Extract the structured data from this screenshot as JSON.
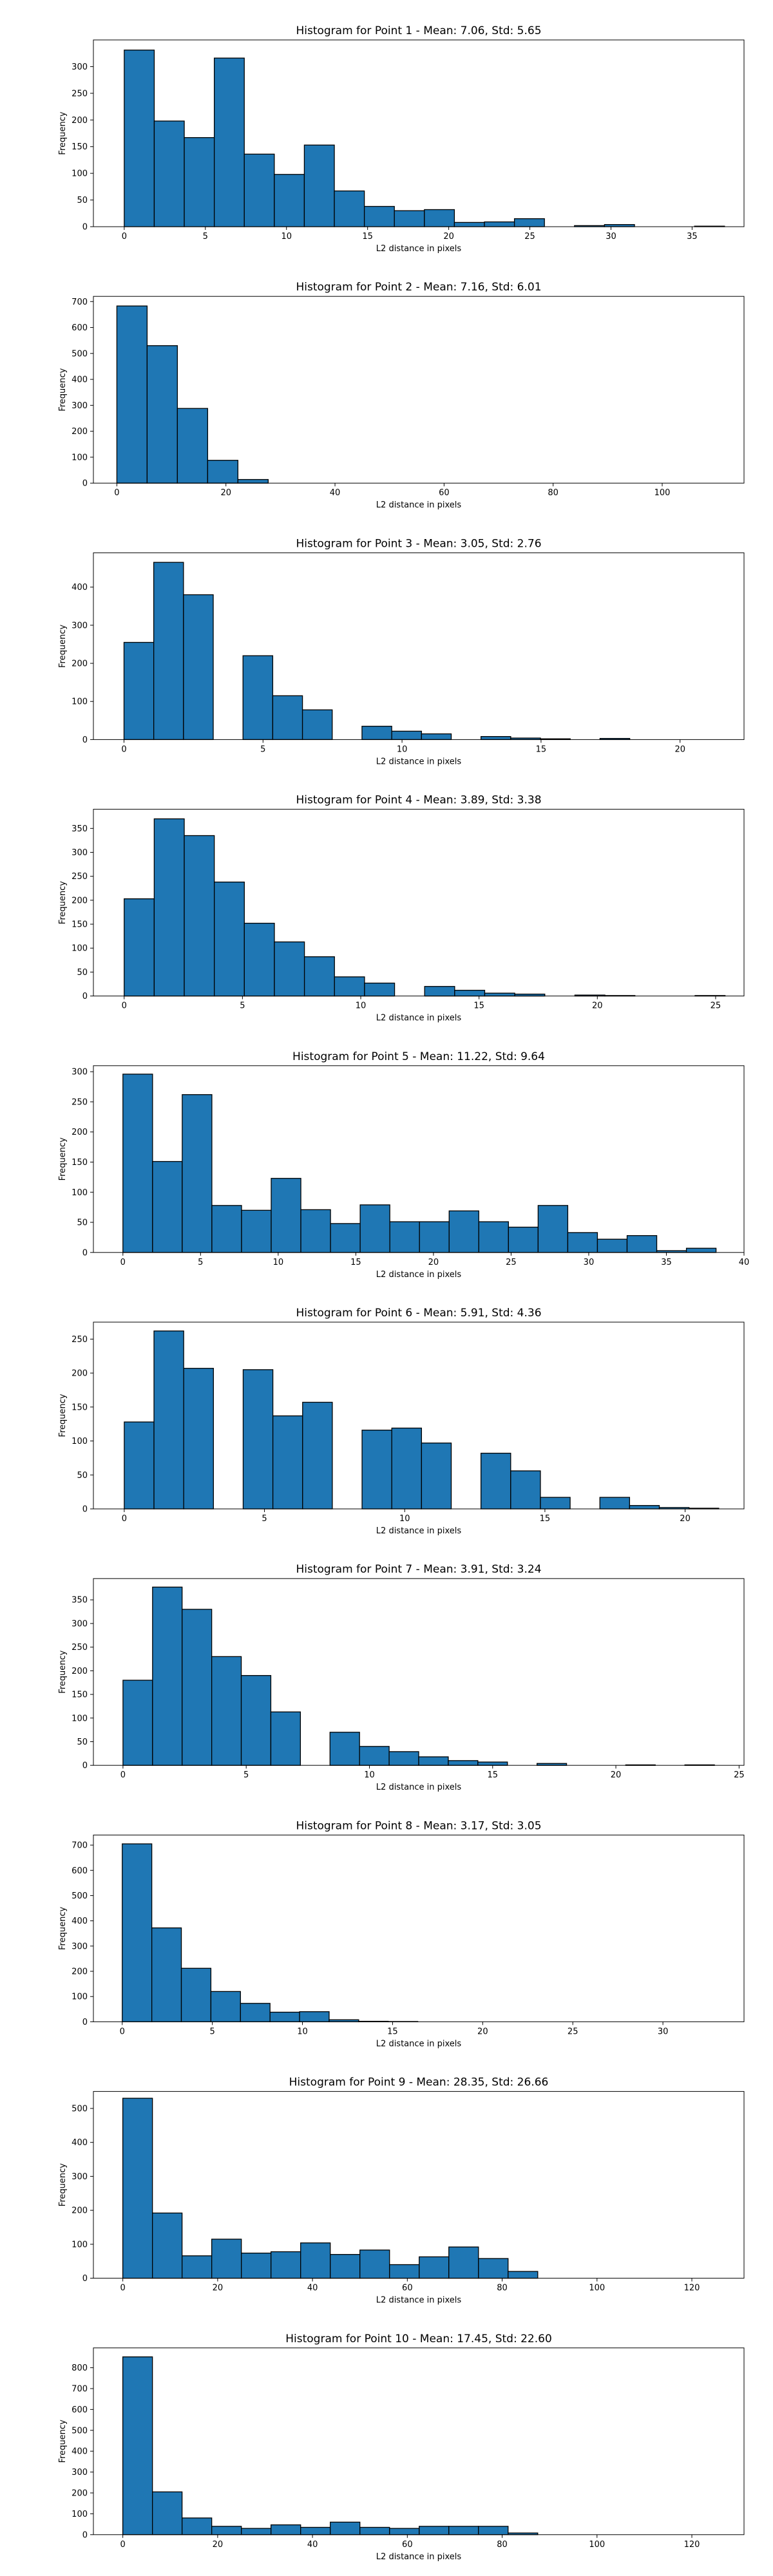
{
  "chart_data": [
    {
      "type": "bar",
      "title": "Histogram for Point 1 - Mean: 7.06, Std: 5.65",
      "xlabel": "L2 distance in pixels",
      "ylabel": "Frequency",
      "xlim": [
        -1.9,
        38.2
      ],
      "ylim": [
        0,
        350
      ],
      "xticks": [
        0,
        5,
        10,
        15,
        20,
        25,
        30,
        35
      ],
      "yticks": [
        0,
        50,
        100,
        150,
        200,
        250,
        300
      ],
      "bin_width": 1.85,
      "bin_start": 0,
      "bar_color": "#1f77b4",
      "edge_color": "#000000",
      "values": [
        331,
        198,
        167,
        316,
        136,
        98,
        153,
        67,
        38,
        30,
        32,
        8,
        9,
        15,
        0,
        2,
        4,
        0,
        0,
        1
      ]
    },
    {
      "type": "bar",
      "title": "Histogram for Point 2 - Mean: 7.16, Std: 6.01",
      "xlabel": "L2 distance in pixels",
      "ylabel": "Frequency",
      "xlim": [
        -4.3,
        115
      ],
      "ylim": [
        0,
        720
      ],
      "xticks": [
        0,
        20,
        40,
        60,
        80,
        100
      ],
      "yticks": [
        0,
        100,
        200,
        300,
        400,
        500,
        600,
        700
      ],
      "bin_width": 5.55,
      "bin_start": 0,
      "bar_color": "#1f77b4",
      "edge_color": "#000000",
      "values": [
        683,
        530,
        288,
        88,
        14,
        0,
        0,
        0,
        0,
        0,
        0,
        0,
        0,
        0,
        0,
        0,
        0,
        0,
        0,
        0
      ]
    },
    {
      "type": "bar",
      "title": "Histogram for Point 3 - Mean: 3.05, Std: 2.76",
      "xlabel": "L2 distance in pixels",
      "ylabel": "Frequency",
      "xlim": [
        -1.1,
        22.3
      ],
      "ylim": [
        0,
        490
      ],
      "xticks": [
        0,
        5,
        10,
        15,
        20
      ],
      "yticks": [
        0,
        100,
        200,
        300,
        400
      ],
      "bin_width": 1.07,
      "bin_start": 0,
      "bar_color": "#1f77b4",
      "edge_color": "#000000",
      "values": [
        255,
        465,
        380,
        0,
        220,
        115,
        78,
        0,
        35,
        22,
        15,
        0,
        8,
        4,
        2,
        0,
        3,
        0,
        0,
        0
      ]
    },
    {
      "type": "bar",
      "title": "Histogram for Point 4 - Mean: 3.89, Std: 3.38",
      "xlabel": "L2 distance in pixels",
      "ylabel": "Frequency",
      "xlim": [
        -1.3,
        26.2
      ],
      "ylim": [
        0,
        390
      ],
      "xticks": [
        0,
        5,
        10,
        15,
        20,
        25
      ],
      "yticks": [
        0,
        50,
        100,
        150,
        200,
        250,
        300,
        350
      ],
      "bin_width": 1.27,
      "bin_start": 0,
      "bar_color": "#1f77b4",
      "edge_color": "#000000",
      "values": [
        203,
        370,
        335,
        238,
        152,
        113,
        82,
        40,
        27,
        0,
        20,
        12,
        6,
        4,
        0,
        2,
        1,
        0,
        0,
        1
      ]
    },
    {
      "type": "bar",
      "title": "Histogram for Point 5 - Mean: 11.22, Std: 9.64",
      "xlabel": "L2 distance in pixels",
      "ylabel": "Frequency",
      "xlim": [
        -1.9,
        40
      ],
      "ylim": [
        0,
        310
      ],
      "xticks": [
        0,
        5,
        10,
        15,
        20,
        25,
        30,
        35,
        40
      ],
      "yticks": [
        0,
        50,
        100,
        150,
        200,
        250,
        300
      ],
      "bin_width": 1.91,
      "bin_start": 0,
      "bar_color": "#1f77b4",
      "edge_color": "#000000",
      "values": [
        296,
        151,
        262,
        78,
        70,
        123,
        71,
        48,
        79,
        51,
        51,
        69,
        51,
        42,
        78,
        33,
        22,
        28,
        3,
        7
      ]
    },
    {
      "type": "bar",
      "title": "Histogram for Point 6 - Mean: 5.91, Std: 4.36",
      "xlabel": "L2 distance in pixels",
      "ylabel": "Frequency",
      "xlim": [
        -1.1,
        22.1
      ],
      "ylim": [
        0,
        275
      ],
      "xticks": [
        0,
        5,
        10,
        15,
        20
      ],
      "yticks": [
        0,
        50,
        100,
        150,
        200,
        250
      ],
      "bin_width": 1.06,
      "bin_start": 0,
      "bar_color": "#1f77b4",
      "edge_color": "#000000",
      "values": [
        128,
        262,
        207,
        0,
        205,
        137,
        157,
        0,
        116,
        119,
        97,
        0,
        82,
        56,
        17,
        0,
        17,
        5,
        2,
        1
      ]
    },
    {
      "type": "bar",
      "title": "Histogram for Point 7 - Mean: 3.91, Std: 3.24",
      "xlabel": "L2 distance in pixels",
      "ylabel": "Frequency",
      "xlim": [
        -1.2,
        25.2
      ],
      "ylim": [
        0,
        395
      ],
      "xticks": [
        0,
        5,
        10,
        15,
        20,
        25
      ],
      "yticks": [
        0,
        50,
        100,
        150,
        200,
        250,
        300,
        350
      ],
      "bin_width": 1.2,
      "bin_start": 0,
      "bar_color": "#1f77b4",
      "edge_color": "#000000",
      "values": [
        180,
        377,
        330,
        230,
        190,
        113,
        0,
        70,
        40,
        29,
        18,
        10,
        7,
        0,
        4,
        0,
        0,
        1,
        0,
        1
      ]
    },
    {
      "type": "bar",
      "title": "Histogram for Point 8 - Mean: 3.17, Std: 3.05",
      "xlabel": "L2 distance in pixels",
      "ylabel": "Frequency",
      "xlim": [
        -1.6,
        34.5
      ],
      "ylim": [
        0,
        740
      ],
      "xticks": [
        0,
        5,
        10,
        15,
        20,
        25,
        30
      ],
      "yticks": [
        0,
        100,
        200,
        300,
        400,
        500,
        600,
        700
      ],
      "bin_width": 1.64,
      "bin_start": 0,
      "bar_color": "#1f77b4",
      "edge_color": "#000000",
      "values": [
        705,
        372,
        212,
        120,
        73,
        38,
        40,
        8,
        2,
        1,
        0,
        0,
        0,
        0,
        0,
        0,
        0,
        0,
        0,
        0
      ]
    },
    {
      "type": "bar",
      "title": "Histogram for Point 9 - Mean: 28.35, Std: 26.66",
      "xlabel": "L2 distance in pixels",
      "ylabel": "Frequency",
      "xlim": [
        -6.2,
        131
      ],
      "ylim": [
        0,
        550
      ],
      "xticks": [
        0,
        20,
        40,
        60,
        80,
        100,
        120
      ],
      "yticks": [
        0,
        100,
        200,
        300,
        400,
        500
      ],
      "bin_width": 6.25,
      "bin_start": 0,
      "bar_color": "#1f77b4",
      "edge_color": "#000000",
      "values": [
        530,
        192,
        66,
        115,
        74,
        78,
        104,
        70,
        83,
        40,
        63,
        92,
        58,
        20,
        0,
        0,
        0,
        0,
        0,
        0
      ]
    },
    {
      "type": "bar",
      "title": "Histogram for Point 10 - Mean: 17.45, Std: 22.60",
      "xlabel": "L2 distance in pixels",
      "ylabel": "Frequency",
      "xlim": [
        -6.2,
        131
      ],
      "ylim": [
        0,
        895
      ],
      "xticks": [
        0,
        20,
        40,
        60,
        80,
        100,
        120
      ],
      "yticks": [
        0,
        100,
        200,
        300,
        400,
        500,
        600,
        700,
        800
      ],
      "bin_width": 6.25,
      "bin_start": 0,
      "bar_color": "#1f77b4",
      "edge_color": "#000000",
      "values": [
        852,
        205,
        80,
        40,
        30,
        47,
        35,
        60,
        35,
        30,
        40,
        40,
        40,
        8,
        0,
        0,
        0,
        0,
        0,
        0
      ]
    }
  ]
}
